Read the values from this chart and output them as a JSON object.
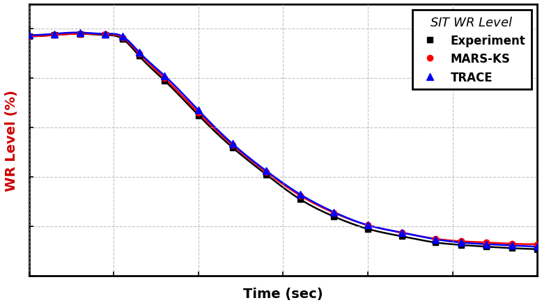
{
  "title": "",
  "xlabel": "Time (sec)",
  "ylabel": "WR Level (%)",
  "legend_title": "SIT WR Level",
  "series": {
    "experiment": {
      "label": "Experiment",
      "color": "#000000",
      "marker": "s",
      "markersize": 6,
      "linewidth": 1.8,
      "x": [
        0,
        20,
        40,
        60,
        80,
        100,
        120,
        140,
        160,
        180,
        200,
        220,
        240,
        260,
        280,
        300,
        320,
        340,
        360,
        380,
        400,
        420,
        440,
        460,
        480,
        500,
        520,
        540,
        560,
        580,
        600
      ],
      "y": [
        97,
        97.5,
        98,
        97.8,
        97.2,
        93,
        87,
        80,
        73,
        67,
        61,
        56,
        51,
        46,
        42,
        38,
        34,
        30,
        27,
        24,
        22,
        20,
        18,
        16.5,
        15,
        14,
        13,
        12,
        11.5,
        11,
        10.5
      ]
    },
    "mars_ks": {
      "label": "MARS-KS",
      "color": "#ff0000",
      "marker": "o",
      "markersize": 6,
      "linewidth": 1.8,
      "x": [
        0,
        20,
        40,
        60,
        80,
        100,
        120,
        140,
        160,
        180,
        200,
        220,
        240,
        260,
        280,
        300,
        320,
        340,
        360,
        380,
        400,
        420,
        440,
        460,
        480,
        500,
        520,
        540,
        560,
        580,
        600
      ],
      "y": [
        97,
        97.5,
        98,
        97.8,
        97.5,
        94,
        88,
        81,
        74,
        68,
        62,
        57,
        52,
        47,
        43,
        39,
        35,
        31,
        28,
        25.5,
        23,
        21,
        19.5,
        18,
        16.5,
        15.5,
        14.5,
        13.8,
        13.2,
        12.8,
        12.5
      ]
    },
    "trace": {
      "label": "TRACE",
      "color": "#0000ff",
      "marker": "^",
      "markersize": 7,
      "linewidth": 1.8,
      "x": [
        0,
        20,
        40,
        60,
        80,
        100,
        120,
        140,
        160,
        180,
        200,
        220,
        240,
        260,
        280,
        300,
        320,
        340,
        360,
        380,
        400,
        420,
        440,
        460,
        480,
        500,
        520,
        540,
        560,
        580,
        600
      ],
      "y": [
        97.5,
        98,
        98.5,
        98,
        97.5,
        94.5,
        88.5,
        81.5,
        74.5,
        68.5,
        62.5,
        57,
        52,
        47.5,
        43,
        39,
        35,
        31.5,
        28,
        25.5,
        23,
        21,
        19.5,
        17.5,
        16,
        15,
        14,
        13.2,
        12.5,
        12,
        11.8
      ]
    }
  },
  "xlim": [
    0,
    600
  ],
  "ylim": [
    0,
    110
  ],
  "grid_color": "#aaaaaa",
  "grid_style": "--",
  "grid_alpha": 0.7,
  "background_color": "#ffffff",
  "spine_color": "#000000",
  "tick_fontsize": 11,
  "label_fontsize": 14,
  "legend_fontsize": 12,
  "legend_title_fontsize": 13
}
